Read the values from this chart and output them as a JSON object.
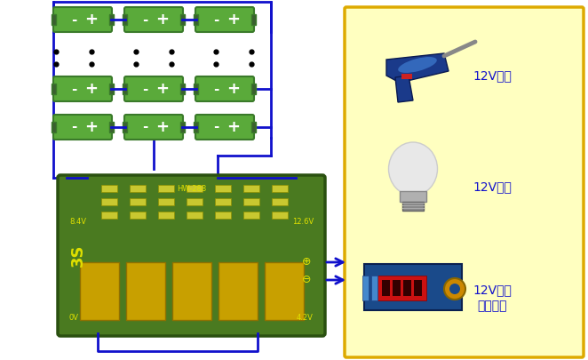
{
  "bg_color": "#ffffff",
  "blue": "#1010cc",
  "battery_fill": "#5aaa3a",
  "battery_border": "#3a7a2a",
  "battery_dark": "#3a6030",
  "pcb_fill": "#4a7a20",
  "pcb_border": "#2a5010",
  "yellow_box_fill": "#ffffc0",
  "yellow_box_border": "#ddaa00",
  "figsize": [
    6.62,
    4.05
  ],
  "dpi": 100,
  "labels": {
    "drill": "12V电钒",
    "bulb": "12V灯泡",
    "converter": "12V直流\n转换模块"
  },
  "pcb_labels": {
    "hw288": "HW-288",
    "v84": "8.4V",
    "v126": "12.6V",
    "v0": "0V",
    "v42": "4.2V",
    "s3": "3S"
  }
}
